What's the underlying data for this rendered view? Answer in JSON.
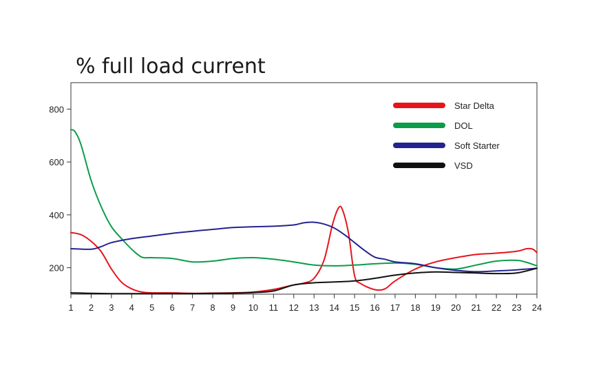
{
  "chart_data": {
    "type": "line",
    "title": "% full load current",
    "xlabel": "",
    "ylabel": "",
    "x": [
      1,
      2,
      3,
      4,
      5,
      6,
      7,
      8,
      9,
      10,
      11,
      12,
      13,
      14,
      15,
      16,
      17,
      18,
      19,
      20,
      21,
      22,
      23,
      24
    ],
    "xlim": [
      1,
      24
    ],
    "ylim": [
      100,
      900
    ],
    "yticks": [
      200,
      400,
      600,
      800
    ],
    "grid": false,
    "legend_position": "top-right",
    "series": [
      {
        "name": "Star Delta",
        "color": "#e8131b",
        "points": [
          [
            1,
            333
          ],
          [
            1.5,
            325
          ],
          [
            2,
            300
          ],
          [
            2.5,
            260
          ],
          [
            3,
            195
          ],
          [
            3.5,
            145
          ],
          [
            4,
            120
          ],
          [
            4.5,
            108
          ],
          [
            5,
            105
          ],
          [
            6,
            105
          ],
          [
            7,
            103
          ],
          [
            8,
            104
          ],
          [
            9,
            105
          ],
          [
            10,
            108
          ],
          [
            11,
            118
          ],
          [
            12,
            135
          ],
          [
            12.5,
            142
          ],
          [
            13,
            160
          ],
          [
            13.5,
            230
          ],
          [
            13.9,
            360
          ],
          [
            14.2,
            425
          ],
          [
            14.4,
            420
          ],
          [
            14.7,
            330
          ],
          [
            15,
            170
          ],
          [
            15.3,
            140
          ],
          [
            16,
            117
          ],
          [
            16.5,
            120
          ],
          [
            17,
            150
          ],
          [
            18,
            195
          ],
          [
            19,
            222
          ],
          [
            20,
            238
          ],
          [
            21,
            250
          ],
          [
            22,
            255
          ],
          [
            23,
            262
          ],
          [
            23.5,
            272
          ],
          [
            23.8,
            270
          ],
          [
            24,
            257
          ]
        ]
      },
      {
        "name": "DOL",
        "color": "#0a9c49",
        "points": [
          [
            1,
            722
          ],
          [
            1.2,
            715
          ],
          [
            1.5,
            665
          ],
          [
            2,
            530
          ],
          [
            2.5,
            430
          ],
          [
            3,
            355
          ],
          [
            3.5,
            310
          ],
          [
            4,
            270
          ],
          [
            4.5,
            240
          ],
          [
            5,
            238
          ],
          [
            6,
            235
          ],
          [
            7,
            222
          ],
          [
            8,
            225
          ],
          [
            9,
            235
          ],
          [
            10,
            238
          ],
          [
            11,
            232
          ],
          [
            12,
            222
          ],
          [
            13,
            210
          ],
          [
            14,
            207
          ],
          [
            15,
            210
          ],
          [
            16,
            215
          ],
          [
            17,
            218
          ],
          [
            18,
            213
          ],
          [
            19,
            200
          ],
          [
            20,
            195
          ],
          [
            21,
            210
          ],
          [
            22,
            225
          ],
          [
            23,
            228
          ],
          [
            23.5,
            220
          ],
          [
            24,
            207
          ]
        ]
      },
      {
        "name": "Soft Starter",
        "color": "#23238f",
        "points": [
          [
            1,
            272
          ],
          [
            2,
            270
          ],
          [
            2.5,
            280
          ],
          [
            3,
            295
          ],
          [
            4,
            310
          ],
          [
            5,
            320
          ],
          [
            6,
            330
          ],
          [
            7,
            338
          ],
          [
            8,
            345
          ],
          [
            9,
            352
          ],
          [
            10,
            355
          ],
          [
            11,
            357
          ],
          [
            12,
            362
          ],
          [
            12.5,
            370
          ],
          [
            13,
            372
          ],
          [
            13.5,
            365
          ],
          [
            14,
            350
          ],
          [
            14.5,
            325
          ],
          [
            15,
            295
          ],
          [
            15.5,
            265
          ],
          [
            16,
            240
          ],
          [
            16.5,
            232
          ],
          [
            17,
            222
          ],
          [
            18,
            215
          ],
          [
            19,
            200
          ],
          [
            20,
            190
          ],
          [
            21,
            185
          ],
          [
            22,
            188
          ],
          [
            23,
            192
          ],
          [
            24,
            198
          ]
        ]
      },
      {
        "name": "VSD",
        "color": "#111111",
        "points": [
          [
            1,
            105
          ],
          [
            2,
            103
          ],
          [
            3,
            102
          ],
          [
            4,
            102
          ],
          [
            5,
            102
          ],
          [
            6,
            102
          ],
          [
            7,
            102
          ],
          [
            8,
            103
          ],
          [
            9,
            104
          ],
          [
            10,
            106
          ],
          [
            11,
            112
          ],
          [
            12,
            135
          ],
          [
            13,
            143
          ],
          [
            14,
            146
          ],
          [
            15,
            150
          ],
          [
            16,
            160
          ],
          [
            17,
            172
          ],
          [
            18,
            180
          ],
          [
            19,
            184
          ],
          [
            20,
            182
          ],
          [
            21,
            180
          ],
          [
            22,
            178
          ],
          [
            23,
            180
          ],
          [
            24,
            198
          ]
        ]
      }
    ]
  }
}
